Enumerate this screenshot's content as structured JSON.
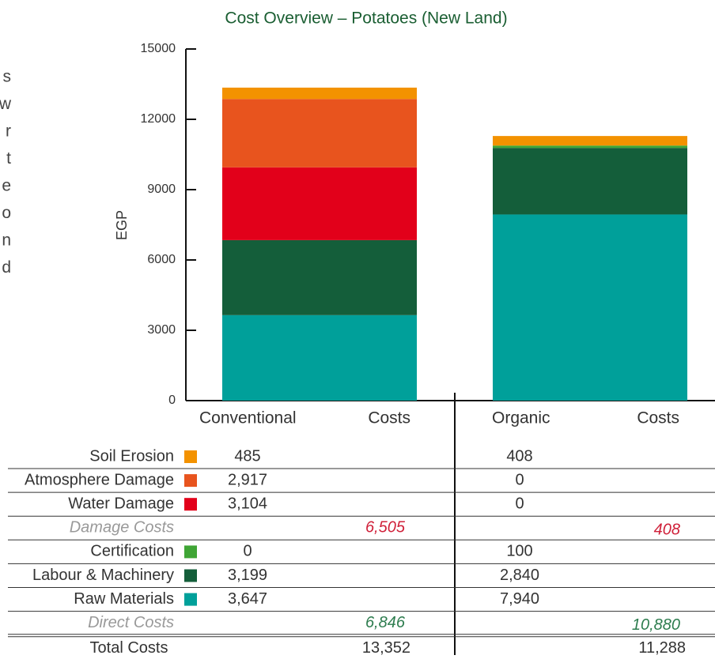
{
  "chart_data": {
    "type": "bar",
    "stacked": true,
    "title": "Cost Overview – Potatoes (New Land)",
    "y_label": "EGP",
    "categories": [
      "Conventional",
      "Organic"
    ],
    "category_suffixes": [
      "Costs",
      "Costs"
    ],
    "ylim": [
      0,
      15000
    ],
    "yticks": [
      0,
      3000,
      6000,
      9000,
      12000,
      15000
    ],
    "series": [
      {
        "name": "Soil Erosion",
        "color": "#f39200",
        "values": [
          485,
          408
        ],
        "value_labels": [
          "485",
          "408"
        ]
      },
      {
        "name": "Atmosphere Damage",
        "color": "#e8541e",
        "values": [
          2917,
          0
        ],
        "value_labels": [
          "2,917",
          "0"
        ]
      },
      {
        "name": "Water Damage",
        "color": "#e2001a",
        "values": [
          3104,
          0
        ],
        "value_labels": [
          "3,104",
          "0"
        ]
      },
      {
        "name": "Certification",
        "color": "#3fa535",
        "values": [
          0,
          100
        ],
        "value_labels": [
          "0",
          "100"
        ]
      },
      {
        "name": "Labour & Machinery",
        "color": "#145e3a",
        "values": [
          3199,
          2840
        ],
        "value_labels": [
          "3,199",
          "2,840"
        ]
      },
      {
        "name": "Raw Materials",
        "color": "#00a09a",
        "values": [
          3647,
          7940
        ],
        "value_labels": [
          "3,647",
          "7,940"
        ]
      }
    ],
    "subtotals": [
      {
        "name": "Damage Costs",
        "after_series": 2,
        "color": "#d0213a",
        "values": [
          6505,
          408
        ],
        "value_labels": [
          "6,505",
          "408"
        ]
      },
      {
        "name": "Direct Costs",
        "after_series": 5,
        "color": "#2e7d4f",
        "values": [
          6846,
          10880
        ],
        "value_labels": [
          "6,846",
          "10,880"
        ]
      }
    ],
    "total": {
      "name": "Total Costs",
      "values": [
        13352,
        11288
      ],
      "value_labels": [
        "13,352",
        "11,288"
      ]
    }
  },
  "side_text": [
    "s",
    "w",
    "r",
    "t",
    "e",
    "o",
    "n",
    "d"
  ]
}
